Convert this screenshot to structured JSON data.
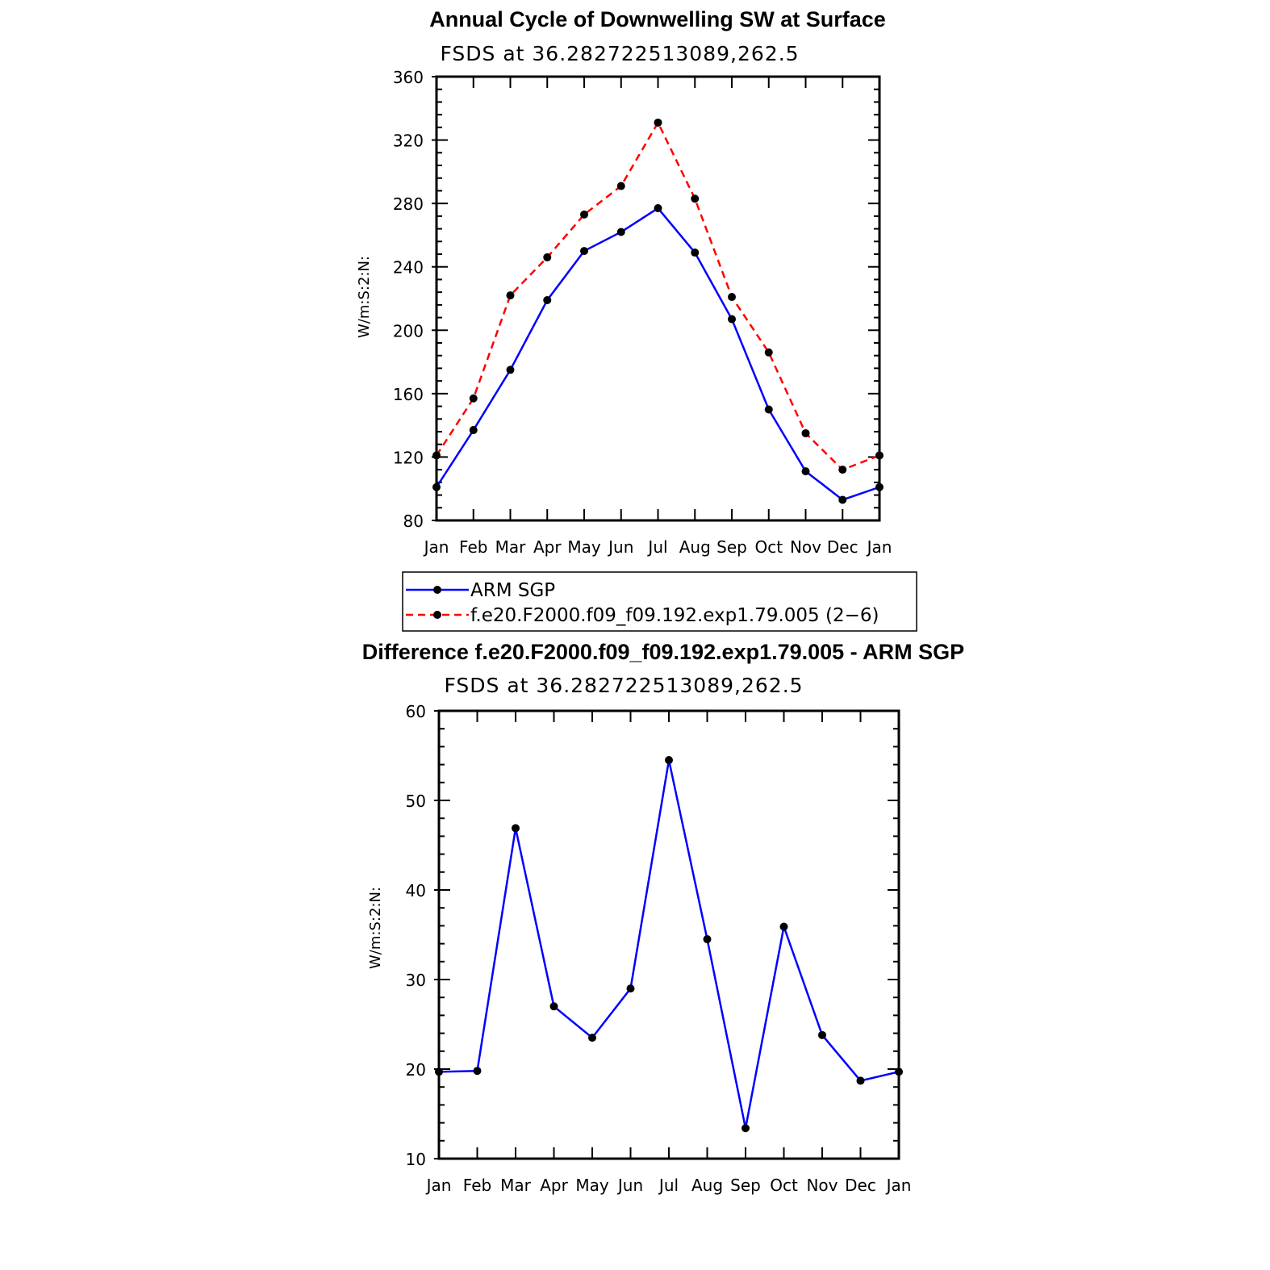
{
  "colors": {
    "blue": "#0000ff",
    "red": "#ff0000",
    "black": "#000000"
  },
  "months": [
    "Jan",
    "Feb",
    "Mar",
    "Apr",
    "May",
    "Jun",
    "Jul",
    "Aug",
    "Sep",
    "Oct",
    "Nov",
    "Dec",
    "Jan"
  ],
  "legend": {
    "entries": [
      "ARM SGP",
      "f.e20.F2000.f09_f09.192.exp1.79.005 (2−6)"
    ]
  },
  "chart_data": [
    {
      "type": "line",
      "title": "Annual Cycle of Downwelling SW at Surface",
      "subtitle": "FSDS at 36.282722513089,262.5",
      "ylabel": "W/m:S:2:N:",
      "xlabel": "",
      "ylim": [
        80,
        360
      ],
      "yticks": [
        80,
        120,
        160,
        200,
        240,
        280,
        320,
        360
      ],
      "categories": [
        "Jan",
        "Feb",
        "Mar",
        "Apr",
        "May",
        "Jun",
        "Jul",
        "Aug",
        "Sep",
        "Oct",
        "Nov",
        "Dec",
        "Jan"
      ],
      "series": [
        {
          "name": "ARM SGP",
          "color": "#0000ff",
          "dash": "solid",
          "values": [
            101,
            137,
            175,
            219,
            250,
            262,
            277,
            249,
            207,
            150,
            111,
            93,
            101
          ]
        },
        {
          "name": "f.e20.F2000.f09_f09.192.exp1.79.005 (2−6)",
          "color": "#ff0000",
          "dash": "dashed",
          "values": [
            121,
            157,
            222,
            246,
            273,
            291,
            331,
            283,
            221,
            186,
            135,
            112,
            121
          ]
        }
      ],
      "legend_position": "below"
    },
    {
      "type": "line",
      "title": "Difference f.e20.F2000.f09_f09.192.exp1.79.005 - ARM SGP",
      "subtitle": "FSDS at 36.282722513089,262.5",
      "ylabel": "W/m:S:2:N:",
      "xlabel": "",
      "ylim": [
        10,
        60
      ],
      "yticks": [
        10,
        20,
        30,
        40,
        50,
        60
      ],
      "categories": [
        "Jan",
        "Feb",
        "Mar",
        "Apr",
        "May",
        "Jun",
        "Jul",
        "Aug",
        "Sep",
        "Oct",
        "Nov",
        "Dec",
        "Jan"
      ],
      "series": [
        {
          "color": "#0000ff",
          "dash": "solid",
          "values": [
            19.7,
            19.8,
            46.9,
            27.0,
            23.5,
            29.0,
            54.5,
            34.5,
            13.4,
            35.9,
            23.8,
            18.7,
            19.7
          ]
        }
      ]
    }
  ]
}
